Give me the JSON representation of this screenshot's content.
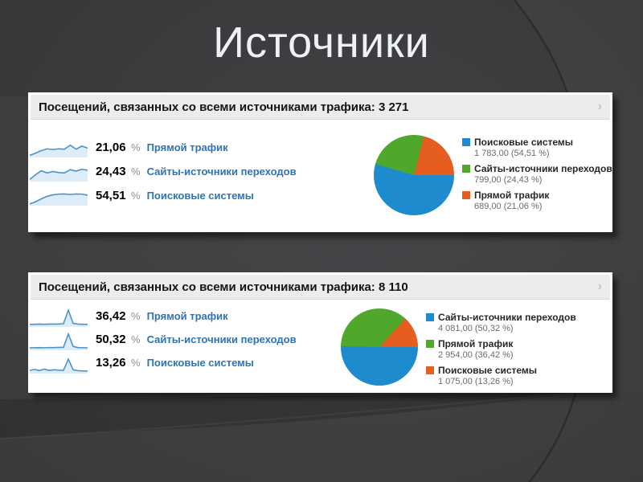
{
  "slide": {
    "title": "Источники"
  },
  "ui": {
    "percent_sign": "%",
    "header_chevron": "›"
  },
  "colors": {
    "pie_blue": "#1d8bcd",
    "pie_green": "#4fa82b",
    "pie_orange": "#e55d1f",
    "link_blue": "#2e73b5",
    "slide_background": "#3b3b3d",
    "panel_header_gray": "#ececec"
  },
  "panels": [
    {
      "header": "Посещений, связанных со всеми источниками трафика: 3 271",
      "total_visits": "3 271",
      "rows": [
        {
          "percent": "21,06",
          "label": "Прямой трафик",
          "spark": [
            4,
            16,
            30,
            40,
            36,
            40,
            38,
            60,
            38,
            55,
            44
          ]
        },
        {
          "percent": "24,43",
          "label": "Сайты-источники переходов",
          "spark": [
            4,
            30,
            52,
            40,
            48,
            42,
            40,
            58,
            50,
            60,
            55
          ]
        },
        {
          "percent": "54,51",
          "label": "Поисковые системы",
          "spark": [
            2,
            14,
            30,
            44,
            52,
            56,
            57,
            54,
            57,
            56,
            50
          ]
        }
      ],
      "legend": [
        {
          "name": "Поисковые системы",
          "value": "1 783,00 (54,51 %)",
          "color": "#1d8bcd"
        },
        {
          "name": "Сайты-источники переходов",
          "value": "799,00 (24,43 %)",
          "color": "#4fa82b"
        },
        {
          "name": "Прямой трафик",
          "value": "689,00 (21,06 %)",
          "color": "#e55d1f"
        }
      ]
    },
    {
      "header": "Посещений, связанных со всеми источниками трафика: 8 110",
      "total_visits": "8 110",
      "rows": [
        {
          "percent": "36,42",
          "label": "Прямой трафик",
          "spark": [
            7,
            7,
            8,
            7,
            8,
            8,
            9,
            10,
            85,
            12,
            8,
            7,
            7
          ]
        },
        {
          "percent": "50,32",
          "label": "Сайты-источники переходов",
          "spark": [
            6,
            6,
            7,
            6,
            7,
            7,
            8,
            8,
            82,
            14,
            7,
            6,
            6
          ]
        },
        {
          "percent": "13,26",
          "label": "Поисковые системы",
          "spark": [
            10,
            15,
            9,
            17,
            10,
            13,
            11,
            10,
            72,
            13,
            8,
            7,
            6
          ]
        }
      ],
      "legend": [
        {
          "name": "Сайты-источники переходов",
          "value": "4 081,00 (50,32 %)",
          "color": "#1d8bcd"
        },
        {
          "name": "Прямой трафик",
          "value": "2 954,00 (36,42 %)",
          "color": "#4fa82b"
        },
        {
          "name": "Поисковые системы",
          "value": "1 075,00 (13,26 %)",
          "color": "#e55d1f"
        }
      ]
    }
  ],
  "chart_data": [
    {
      "type": "pie",
      "title": "Посещений, связанных со всеми источниками трафика: 3 271",
      "total": 3271,
      "labels": [
        "Поисковые системы",
        "Сайты-источники переходов",
        "Прямой трафик"
      ],
      "values": [
        1783.0,
        799.0,
        689.0
      ],
      "values_pct": [
        54.51,
        24.43,
        21.06
      ],
      "colors": [
        "#1d8bcd",
        "#4fa82b",
        "#e55d1f"
      ],
      "legend_position": "right",
      "start_angle_deg": 90
    },
    {
      "type": "pie",
      "title": "Посещений, связанных со всеми источниками трафика: 8 110",
      "total": 8110,
      "labels": [
        "Сайты-источники переходов",
        "Прямой трафик",
        "Поисковые системы"
      ],
      "values": [
        4081.0,
        2954.0,
        1075.0
      ],
      "values_pct": [
        50.32,
        36.42,
        13.26
      ],
      "colors": [
        "#1d8bcd",
        "#4fa82b",
        "#e55d1f"
      ],
      "legend_position": "right",
      "start_angle_deg": 90
    }
  ]
}
